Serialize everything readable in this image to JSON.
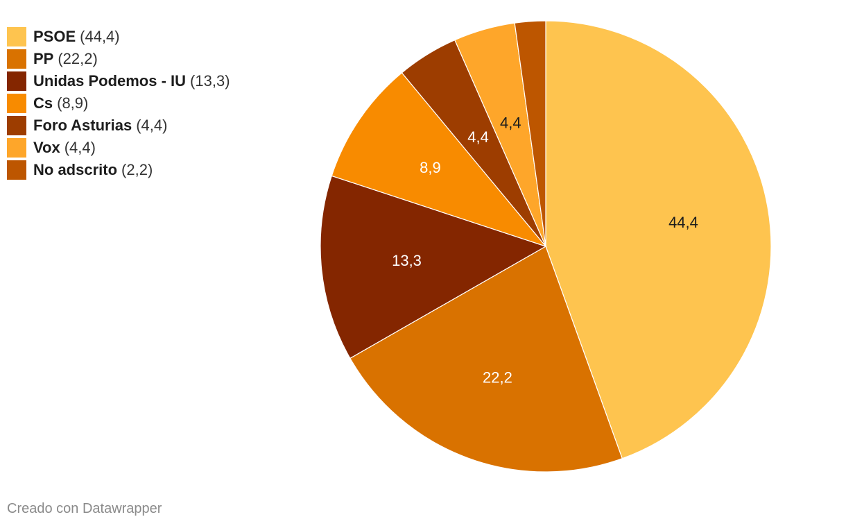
{
  "chart_data": {
    "type": "pie",
    "slices": [
      {
        "name": "PSOE",
        "value": 44.4,
        "value_label": "44,4",
        "legend_value": "(44,4)",
        "color": "#fec44f",
        "label_color": "#1d1d1d"
      },
      {
        "name": "PP",
        "value": 22.2,
        "value_label": "22,2",
        "legend_value": "(22,2)",
        "color": "#d97200",
        "label_color": "#ffffff"
      },
      {
        "name": "Unidas Podemos - IU",
        "value": 13.3,
        "value_label": "13,3",
        "legend_value": "(13,3)",
        "color": "#842600",
        "label_color": "#ffffff"
      },
      {
        "name": "Cs",
        "value": 8.9,
        "value_label": "8,9",
        "legend_value": "(8,9)",
        "color": "#f88b00",
        "label_color": "#ffffff"
      },
      {
        "name": "Foro Asturias",
        "value": 4.4,
        "value_label": "4,4",
        "legend_value": "(4,4)",
        "color": "#9d3d00",
        "label_color": "#ffffff"
      },
      {
        "name": "Vox",
        "value": 4.4,
        "value_label": "4,4",
        "legend_value": "(4,4)",
        "color": "#fea62a",
        "label_color": "#1d1d1d"
      },
      {
        "name": "No adscrito",
        "value": 2.2,
        "value_label": "",
        "legend_value": "(2,2)",
        "color": "#bd5600",
        "label_color": "#ffffff"
      }
    ],
    "legend_position": "top-left"
  },
  "footer": {
    "credit": "Creado con Datawrapper"
  }
}
